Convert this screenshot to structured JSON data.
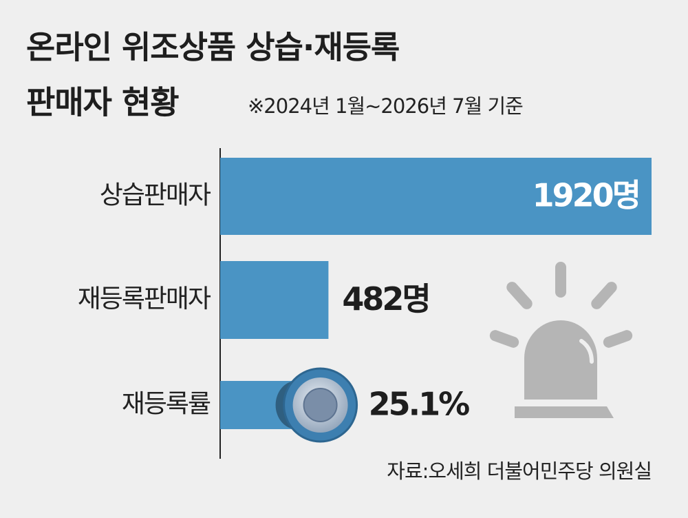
{
  "chart_data": [
    {
      "type": "bar",
      "title": [
        "온라인 위조상품 상습·재등록",
        "판매자 현황"
      ],
      "subtitle": "※2024년 1월~2026년 7월 기준",
      "categories": [
        "상습판매자",
        "재등록판매자"
      ],
      "values": [
        1920,
        482
      ],
      "value_labels": [
        "1920명",
        "482명"
      ],
      "color": "#4a94c4",
      "source": "자료:오세희 더불어민주당 의원실"
    },
    {
      "type": "slider",
      "categories": [
        "재등록률"
      ],
      "values": [
        25.1
      ],
      "value_labels": [
        "25.1%"
      ],
      "color": "#4a94c4"
    }
  ]
}
